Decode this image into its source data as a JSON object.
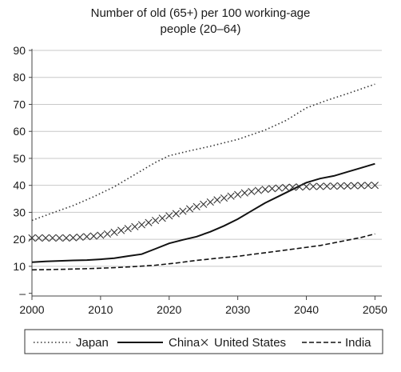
{
  "chart_data": {
    "type": "line",
    "title_lines": [
      "Number of old (65+) per 100 working-age",
      "people (20–64)"
    ],
    "xlabel": "",
    "ylabel": "",
    "xlim": [
      2000,
      2051
    ],
    "ylim": [
      -1,
      90
    ],
    "x_ticks": [
      2000,
      2010,
      2020,
      2030,
      2040,
      2050
    ],
    "x_tick_labels": [
      "2000",
      "2010",
      "2020",
      "2030",
      "2040",
      "2050"
    ],
    "y_ticks": [
      0,
      10,
      20,
      30,
      40,
      50,
      60,
      70,
      80,
      90
    ],
    "y_tick_labels": [
      "–",
      "10",
      "20",
      "30",
      "40",
      "50",
      "60",
      "70",
      "80",
      "90"
    ],
    "grid": "horizontal",
    "legend_position": "bottom",
    "series": [
      {
        "name": "Japan",
        "style": "dotted",
        "color": "#333333",
        "x": [
          2000,
          2003,
          2006,
          2009,
          2012,
          2015,
          2018,
          2020,
          2023,
          2026,
          2030,
          2034,
          2037,
          2040,
          2043,
          2046,
          2050
        ],
        "y": [
          27,
          29.8,
          32.5,
          35.8,
          39.5,
          44,
          48.5,
          51,
          52.8,
          54.5,
          57,
          60.5,
          64,
          68.7,
          71.5,
          74,
          77.5
        ]
      },
      {
        "name": "China",
        "style": "solid",
        "color": "#111111",
        "x": [
          2000,
          2002,
          2004,
          2006,
          2008,
          2010,
          2012,
          2014,
          2016,
          2018,
          2020,
          2022,
          2024,
          2026,
          2028,
          2030,
          2032,
          2034,
          2036,
          2038,
          2040,
          2042,
          2044,
          2046,
          2048,
          2050
        ],
        "y": [
          11.5,
          11.8,
          12,
          12.2,
          12.3,
          12.6,
          13,
          13.8,
          14.5,
          16.5,
          18.5,
          19.8,
          21,
          22.8,
          25,
          27.5,
          30.5,
          33.5,
          36,
          38.5,
          41,
          42.5,
          43.5,
          45,
          46.5,
          48
        ]
      },
      {
        "name": "United States",
        "style": "cross",
        "color": "#333333",
        "x": [
          2000,
          2001,
          2002,
          2003,
          2004,
          2005,
          2006,
          2007,
          2008,
          2009,
          2010,
          2011,
          2012,
          2013,
          2014,
          2015,
          2016,
          2017,
          2018,
          2019,
          2020,
          2021,
          2022,
          2023,
          2024,
          2025,
          2026,
          2027,
          2028,
          2029,
          2030,
          2031,
          2032,
          2033,
          2034,
          2035,
          2036,
          2037,
          2038,
          2039,
          2040,
          2041,
          2042,
          2043,
          2044,
          2045,
          2046,
          2047,
          2048,
          2049,
          2050
        ],
        "y": [
          20.5,
          20.5,
          20.5,
          20.5,
          20.5,
          20.5,
          20.6,
          20.8,
          21,
          21.2,
          21.5,
          22,
          22.6,
          23.3,
          24,
          24.7,
          25.4,
          26.2,
          27,
          27.8,
          28.7,
          29.5,
          30.4,
          31.3,
          32.1,
          33,
          33.8,
          34.6,
          35.3,
          36,
          36.6,
          37.2,
          37.7,
          38.1,
          38.5,
          38.8,
          39,
          39.2,
          39.3,
          39.4,
          39.5,
          39.6,
          39.6,
          39.7,
          39.7,
          39.8,
          39.8,
          39.9,
          39.9,
          40,
          40
        ]
      },
      {
        "name": "India",
        "style": "dashed",
        "color": "#111111",
        "x": [
          2000,
          2003,
          2006,
          2009,
          2012,
          2015,
          2018,
          2021,
          2024,
          2027,
          2030,
          2033,
          2036,
          2039,
          2042,
          2045,
          2048,
          2050
        ],
        "y": [
          8.7,
          8.8,
          9,
          9.2,
          9.5,
          9.9,
          10.4,
          11.2,
          12.2,
          13,
          13.7,
          14.7,
          15.7,
          16.7,
          17.7,
          19.2,
          20.7,
          22
        ]
      }
    ]
  }
}
